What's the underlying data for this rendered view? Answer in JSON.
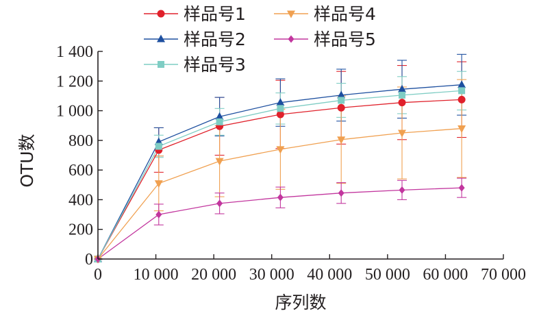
{
  "chart_data": {
    "type": "line",
    "xlabel": "序列数",
    "ylabel": "OTU数",
    "xlim": [
      0,
      70000
    ],
    "ylim": [
      0,
      1400
    ],
    "xticks": [
      0,
      10000,
      20000,
      30000,
      40000,
      50000,
      60000,
      70000
    ],
    "xtick_labels": [
      "0",
      "10 000",
      "20 000",
      "30 000",
      "40 000",
      "50 000",
      "60 000",
      "70 000"
    ],
    "yticks": [
      0,
      200,
      400,
      600,
      800,
      1000,
      1200,
      1400
    ],
    "ytick_labels": [
      "0",
      "200",
      "400",
      "600",
      "800",
      "1 000",
      "1 200",
      "1 400"
    ],
    "legend_position": "top",
    "x": [
      0,
      10500,
      21000,
      31500,
      42000,
      52500,
      62800
    ],
    "series": [
      {
        "name": "样品号1",
        "color": "#e0212b",
        "marker": "circle",
        "values": [
          0,
          735,
          895,
          975,
          1020,
          1055,
          1075
        ],
        "errors": [
          0,
          150,
          195,
          230,
          245,
          250,
          255
        ]
      },
      {
        "name": "样品号2",
        "color": "#1d4f9f",
        "marker": "triangle-up",
        "values": [
          0,
          790,
          960,
          1055,
          1105,
          1145,
          1175
        ],
        "errors": [
          0,
          95,
          130,
          160,
          175,
          195,
          205
        ]
      },
      {
        "name": "样品号3",
        "color": "#7fcdc4",
        "marker": "square",
        "values": [
          0,
          760,
          925,
          1015,
          1070,
          1105,
          1135
        ],
        "errors": [
          0,
          75,
          90,
          105,
          115,
          125,
          130
        ]
      },
      {
        "name": "样品号4",
        "color": "#f0a050",
        "marker": "triangle-down",
        "values": [
          0,
          510,
          660,
          740,
          805,
          850,
          880
        ],
        "errors": [
          0,
          185,
          240,
          270,
          295,
          310,
          330
        ]
      },
      {
        "name": "样品号5",
        "color": "#c2369e",
        "marker": "diamond",
        "values": [
          0,
          300,
          375,
          415,
          445,
          465,
          480
        ],
        "errors": [
          0,
          70,
          70,
          70,
          70,
          65,
          65
        ]
      }
    ]
  }
}
